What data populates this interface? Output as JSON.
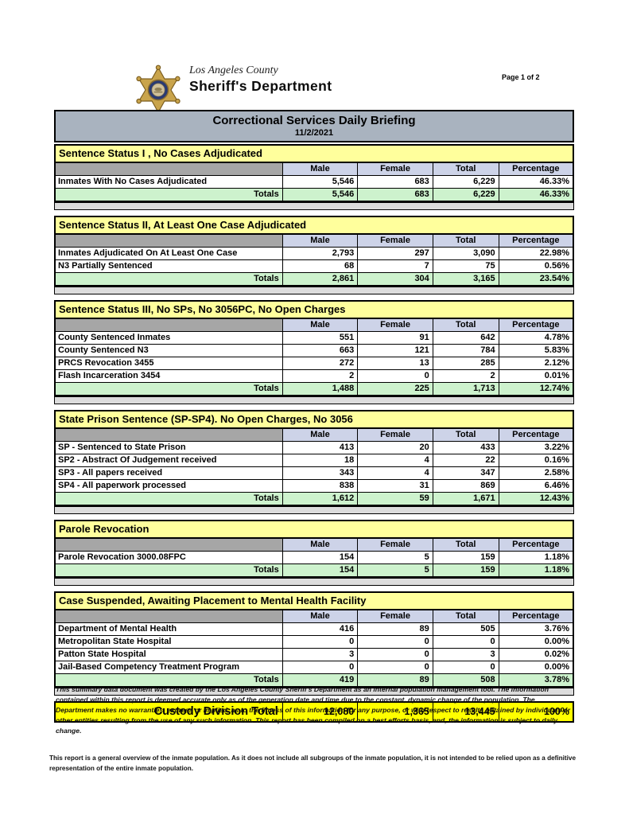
{
  "header": {
    "agency_line1": "Los Angeles County",
    "agency_line2": "Sheriff's Department",
    "logo_icon": "sheriff-star-badge-icon",
    "page_indicator": "Page 1 of 2"
  },
  "title_bar": {
    "title": "Correctional Services Daily Briefing",
    "date": "11/2/2021"
  },
  "columns": [
    "Male",
    "Female",
    "Total",
    "Percentage"
  ],
  "totals_label": "Totals",
  "sections": [
    {
      "title": "Sentence Status I , No Cases Adjudicated",
      "rows": [
        [
          "Inmates With No Cases Adjudicated",
          "5,546",
          "683",
          "6,229",
          "46.33%"
        ]
      ],
      "totals": [
        "5,546",
        "683",
        "6,229",
        "46.33%"
      ]
    },
    {
      "title": "Sentence Status II, At Least One Case Adjudicated",
      "rows": [
        [
          "Inmates Adjudicated On At Least One Case",
          "2,793",
          "297",
          "3,090",
          "22.98%"
        ],
        [
          "N3 Partially Sentenced",
          "68",
          "7",
          "75",
          "0.56%"
        ]
      ],
      "totals": [
        "2,861",
        "304",
        "3,165",
        "23.54%"
      ]
    },
    {
      "title": "Sentence Status III, No SPs, No 3056PC, No Open Charges",
      "rows": [
        [
          "County Sentenced Inmates",
          "551",
          "91",
          "642",
          "4.78%"
        ],
        [
          "County Sentenced N3",
          "663",
          "121",
          "784",
          "5.83%"
        ],
        [
          "PRCS Revocation 3455",
          "272",
          "13",
          "285",
          "2.12%"
        ],
        [
          "Flash Incarceration 3454",
          "2",
          "0",
          "2",
          "0.01%"
        ]
      ],
      "totals": [
        "1,488",
        "225",
        "1,713",
        "12.74%"
      ]
    },
    {
      "title": "State Prison Sentence (SP-SP4). No Open Charges, No 3056",
      "rows": [
        [
          "SP - Sentenced to State Prison",
          "413",
          "20",
          "433",
          "3.22%"
        ],
        [
          "SP2 - Abstract Of Judgement received",
          "18",
          "4",
          "22",
          "0.16%"
        ],
        [
          "SP3 - All papers received",
          "343",
          "4",
          "347",
          "2.58%"
        ],
        [
          "SP4 - All paperwork processed",
          "838",
          "31",
          "869",
          "6.46%"
        ]
      ],
      "totals": [
        "1,612",
        "59",
        "1,671",
        "12.43%"
      ]
    },
    {
      "title": "Parole Revocation",
      "rows": [
        [
          "Parole Revocation 3000.08FPC",
          "154",
          "5",
          "159",
          "1.18%"
        ]
      ],
      "totals": [
        "154",
        "5",
        "159",
        "1.18%"
      ]
    },
    {
      "title": "Case Suspended, Awaiting Placement to Mental Health Facility",
      "rows": [
        [
          "Department of Mental Health",
          "416",
          "89",
          "505",
          "3.76%"
        ],
        [
          "Metropolitan State Hospital",
          "0",
          "0",
          "0",
          "0.00%"
        ],
        [
          "Patton State Hospital",
          "3",
          "0",
          "3",
          "0.02%"
        ],
        [
          "Jail-Based Competency Treatment Program",
          "0",
          "0",
          "0",
          "0.00%"
        ]
      ],
      "totals": [
        "419",
        "89",
        "508",
        "3.78%"
      ]
    }
  ],
  "grand_total": {
    "label": "Custody Division Total",
    "male": "12,080",
    "female": "1,365",
    "total": "13,445",
    "percentage": "100%"
  },
  "footnotes": {
    "disclaimer": "This summary data document was created by the Los Angeles County Sheriff's Department as an internal population management tool.  The information contained within this report is deemed accurate only as of the generation date and time due to the constant, dynamic change of the population.  The Department makes no warranties, express or implied, as to the fitness of this information for any purpose, or with respect to results obtained by individuals or other entities resulting from the use of any such information.  This report has been compiled on a best efforts basis, and, the information is subject to daily change.",
    "overview": "This report is a general overview of the inmate population.  As it does not include all subgroups of the inmate population, it is not intended to be relied upon as a definitive representation of the entire inmate population."
  },
  "colors": {
    "title_bar_bg": "#a9b3bf",
    "section_header_bg": "#ffff9c",
    "column_header_bg": "#cdd3e8",
    "column_header_blank_bg": "#a6a6a6",
    "totals_row_bg": "#cdf2cd",
    "grand_total_bg": "#ffff00",
    "spacer_bg": "#dcdcdc",
    "badge_gold": "#c9a44c",
    "badge_navy": "#2a3a72"
  }
}
